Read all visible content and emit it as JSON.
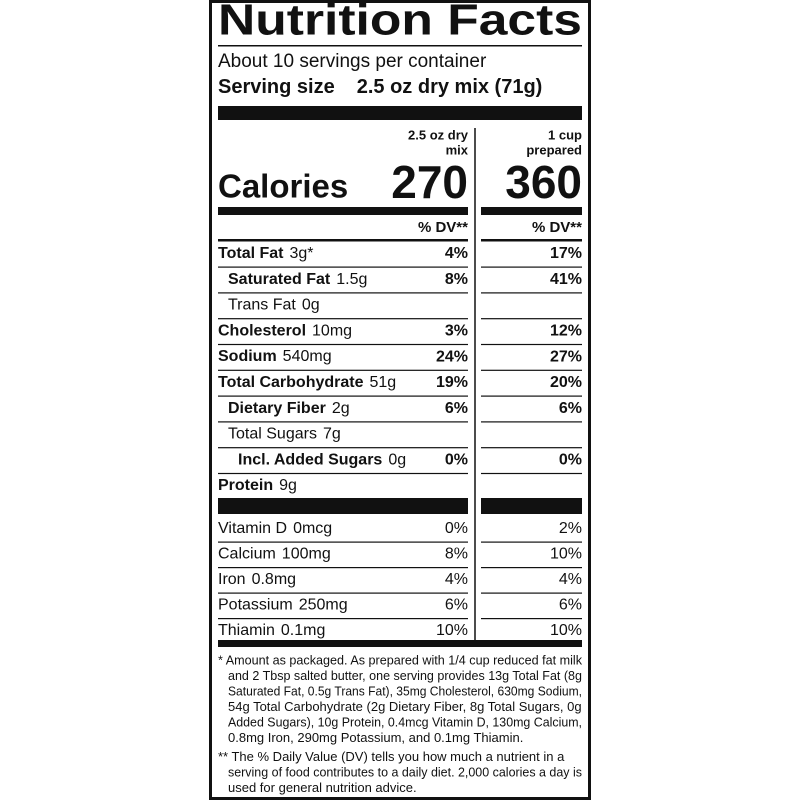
{
  "title": "Nutrition Facts",
  "servings": "About 10 servings per container",
  "serving_size": {
    "label": "Serving size",
    "value": "2.5 oz dry mix (71g)"
  },
  "calories_label": "Calories",
  "columns": [
    {
      "header": [
        "2.5 oz dry",
        "mix"
      ],
      "calories": "270",
      "dv_header": "% DV**"
    },
    {
      "header": [
        "1 cup",
        "prepared"
      ],
      "calories": "360",
      "dv_header": "% DV**"
    }
  ],
  "nutrients": [
    {
      "name": "Total Fat",
      "amount": "3g*",
      "dv": [
        "4%",
        "17%"
      ],
      "sub": [
        {
          "name": "Saturated Fat",
          "amount": "1.5g",
          "dv": [
            "8%",
            "41%"
          ]
        },
        {
          "name": "Trans Fat",
          "amount": "0g"
        }
      ]
    },
    {
      "name": "Cholesterol",
      "amount": "10mg",
      "dv": [
        "3%",
        "12%"
      ]
    },
    {
      "name": "Sodium",
      "amount": "540mg",
      "dv": [
        "24%",
        "27%"
      ]
    },
    {
      "name": "Total Carbohydrate",
      "amount": "51g",
      "dv": [
        "19%",
        "20%"
      ],
      "sub": [
        {
          "name": "Dietary Fiber",
          "amount": "2g",
          "dv": [
            "6%",
            "6%"
          ]
        },
        {
          "name": "Total Sugars",
          "amount": "7g",
          "sub": [
            {
              "name": "Incl. Added Sugars",
              "amount": "0g",
              "dv": [
                "0%",
                "0%"
              ]
            }
          ]
        }
      ]
    },
    {
      "name": "Protein",
      "amount": "9g"
    }
  ],
  "vitamins": [
    {
      "name": "Vitamin D",
      "amount": "0mcg",
      "dv": [
        "0%",
        "2%"
      ]
    },
    {
      "name": "Calcium",
      "amount": "100mg",
      "dv": [
        "8%",
        "10%"
      ]
    },
    {
      "name": "Iron",
      "amount": "0.8mg",
      "dv": [
        "4%",
        "4%"
      ]
    },
    {
      "name": "Potassium",
      "amount": "250mg",
      "dv": [
        "6%",
        "6%"
      ]
    },
    {
      "name": "Thiamin",
      "amount": "0.1mg",
      "dv": [
        "10%",
        "10%"
      ]
    }
  ],
  "footnotes": [
    [
      "* Amount as packaged. As prepared with 1/4 cup reduced fat milk",
      "and 2 Tbsp salted butter, one serving provides 13g Total Fat (8g",
      "Saturated Fat, 0.5g Trans Fat), 35mg Cholesterol, 630mg Sodium,",
      "54g Total Carbohydrate (2g Dietary Fiber, 8g Total Sugars, 0g",
      "Added Sugars), 10g Protein, 0.4mcg Vitamin D, 130mg Calcium,",
      "0.8mg Iron, 290mg Potassium, and 0.1mg Thiamin."
    ],
    [
      "** The % Daily Value (DV) tells you how much a nutrient in a",
      "serving of food contributes to a daily diet. 2,000 calories a day is",
      "used for general nutrition advice."
    ]
  ]
}
